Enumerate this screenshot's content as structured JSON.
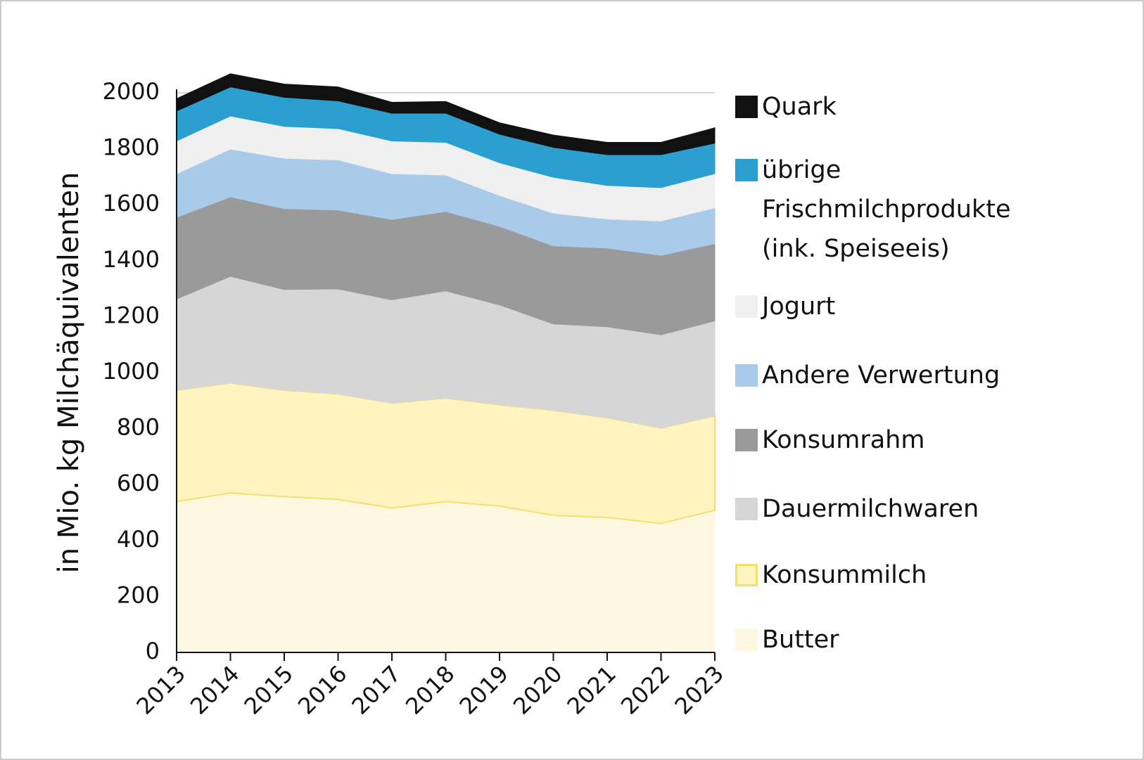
{
  "chart_data": {
    "type": "stacked-area",
    "y_label": "in Mio. kg Milchäquivalenten",
    "categories": [
      "2013",
      "2014",
      "2015",
      "2016",
      "2017",
      "2018",
      "2019",
      "2020",
      "2021",
      "2022",
      "2023"
    ],
    "ylim": [
      0,
      2000
    ],
    "yticks": [
      0,
      200,
      400,
      600,
      800,
      1000,
      1200,
      1400,
      1600,
      1800,
      2000
    ],
    "series": [
      {
        "name": "Butter",
        "color": "#fff7e0",
        "values": [
          539,
          570,
          557,
          547,
          516,
          539,
          523,
          490,
          482,
          461,
          508
        ]
      },
      {
        "name": "Konsummilch",
        "color": "#fff4c0",
        "values": [
          398,
          393,
          380,
          377,
          375,
          370,
          362,
          375,
          357,
          341,
          338
        ]
      },
      {
        "name": "Dauermilchwaren",
        "color": "#d6d6d6",
        "values": [
          326,
          381,
          360,
          375,
          369,
          383,
          357,
          309,
          325,
          333,
          339
        ]
      },
      {
        "name": "Konsumrahm",
        "color": "#9a9a9a",
        "values": [
          292,
          284,
          289,
          282,
          287,
          284,
          281,
          279,
          281,
          284,
          276
        ]
      },
      {
        "name": "Andere Verwertung",
        "color": "#a9cbe9",
        "values": [
          156,
          171,
          180,
          179,
          164,
          130,
          110,
          117,
          104,
          123,
          128
        ]
      },
      {
        "name": "Jogurt",
        "color": "#f0f0f0",
        "values": [
          117,
          118,
          114,
          112,
          117,
          117,
          117,
          128,
          120,
          119,
          122
        ]
      },
      {
        "name": "übrige Frischmilchprodukte (ink. Speiseeis)",
        "color": "#2a9fd0",
        "values": [
          107,
          104,
          104,
          99,
          99,
          104,
          102,
          107,
          110,
          118,
          109
        ]
      },
      {
        "name": "Quark",
        "color": "#111111",
        "values": [
          44,
          47,
          47,
          50,
          39,
          42,
          41,
          44,
          44,
          44,
          55
        ]
      }
    ]
  }
}
